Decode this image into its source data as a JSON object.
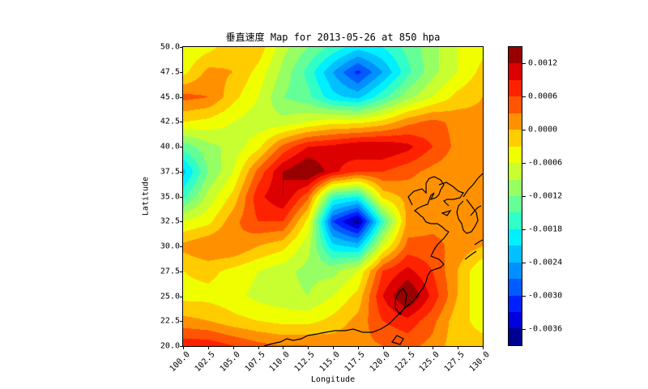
{
  "chart_data": {
    "type": "heatmap",
    "subtype": "filled-contour-map",
    "title": "垂直速度 Map for 2013-05-26 at 850 hpa",
    "xlabel": "Longitude",
    "ylabel": "Latitude",
    "xlim": [
      100.0,
      130.0
    ],
    "ylim": [
      20.0,
      50.0
    ],
    "x_ticks": [
      "100.0",
      "102.5",
      "105.0",
      "107.5",
      "110.0",
      "112.5",
      "115.0",
      "117.5",
      "120.0",
      "122.5",
      "125.0",
      "127.5",
      "130.0"
    ],
    "y_ticks": [
      "50.0",
      "47.5",
      "45.0",
      "42.5",
      "40.0",
      "37.5",
      "35.0",
      "32.5",
      "30.0",
      "27.5",
      "25.0",
      "22.5",
      "20.0"
    ],
    "colorbar": {
      "ticks": [
        "0.0012",
        "0.0006",
        "0.0000",
        "-0.0006",
        "-0.0012",
        "-0.0018",
        "-0.0024",
        "-0.0030",
        "-0.0036"
      ],
      "tick_values": [
        0.0012,
        0.0006,
        0.0,
        -0.0006,
        -0.0012,
        -0.0018,
        -0.0024,
        -0.003,
        -0.0036
      ],
      "vmin": -0.0039,
      "vmax": 0.0015,
      "level_step": 0.0003,
      "colormap": "jet",
      "colors_top_to_bottom": [
        "#990000",
        "#dd0000",
        "#ff2200",
        "#ff5500",
        "#ff9100",
        "#ffcc00",
        "#f0ff00",
        "#c8ff30",
        "#96ff64",
        "#64ff96",
        "#30ffc8",
        "#00f0ff",
        "#00c0ff",
        "#0090ff",
        "#005cff",
        "#0020ff",
        "#0000dd",
        "#000090"
      ]
    },
    "grid_lon": [
      100.0,
      102.5,
      105.0,
      107.5,
      110.0,
      112.5,
      115.0,
      117.5,
      120.0,
      122.5,
      125.0,
      127.5,
      130.0
    ],
    "grid_lat": [
      50.0,
      47.5,
      45.0,
      42.5,
      40.0,
      37.5,
      35.0,
      32.5,
      30.0,
      27.5,
      25.0,
      22.5,
      20.0
    ],
    "values": [
      [
        -0.0006,
        -0.0004,
        -0.0001,
        -0.0001,
        -0.0008,
        -0.0012,
        -0.0016,
        -0.002,
        -0.0018,
        -0.0014,
        -0.001,
        -0.0006,
        -0.0004
      ],
      [
        -0.0004,
        0.0001,
        0.0,
        -0.0004,
        -0.001,
        -0.0016,
        -0.0024,
        -0.0031,
        -0.0024,
        -0.0016,
        -0.001,
        -0.0006,
        -0.0002
      ],
      [
        0.0004,
        0.0003,
        -0.0002,
        -0.0006,
        -0.0012,
        -0.0014,
        -0.002,
        -0.0022,
        -0.0016,
        -0.001,
        -0.0006,
        -0.0002,
        0.0
      ],
      [
        -0.0003,
        -0.0004,
        -0.0006,
        -0.0008,
        -0.0008,
        -0.0006,
        -0.0004,
        -0.0004,
        -0.0002,
        0.0002,
        0.0004,
        0.0002,
        0.0001
      ],
      [
        -0.0014,
        -0.001,
        -0.0008,
        -0.0004,
        0.0004,
        0.0009,
        0.001,
        0.0012,
        0.0012,
        0.001,
        0.0006,
        0.0002,
        0.0001
      ],
      [
        -0.0022,
        -0.0012,
        -0.0006,
        0.0004,
        0.0012,
        0.0016,
        0.001,
        0.0006,
        0.0006,
        0.0004,
        0.0002,
        0.0001,
        0.0
      ],
      [
        -0.0016,
        -0.0008,
        -0.0002,
        0.0008,
        0.0012,
        0.0004,
        -0.0016,
        -0.0018,
        -0.0002,
        0.0001,
        0.0001,
        0.0,
        0.0
      ],
      [
        -0.0006,
        -0.0004,
        0.0002,
        0.0006,
        0.0006,
        -0.0004,
        -0.003,
        -0.0038,
        -0.0016,
        0.0001,
        0.0002,
        0.0002,
        0.0001
      ],
      [
        0.0001,
        0.0003,
        0.0003,
        0.0,
        -0.0002,
        -0.0008,
        -0.002,
        -0.0022,
        -0.0006,
        0.0004,
        0.0004,
        0.0002,
        0.0
      ],
      [
        -0.0003,
        -0.0002,
        -0.0004,
        -0.0006,
        -0.0008,
        -0.001,
        -0.001,
        -0.0006,
        0.0006,
        0.001,
        0.0006,
        0.0,
        -0.0006
      ],
      [
        -0.0004,
        -0.0004,
        -0.0005,
        -0.0007,
        -0.0008,
        -0.0009,
        -0.0006,
        -0.0002,
        0.0009,
        0.0016,
        0.0008,
        0.0,
        -0.0006
      ],
      [
        0.0001,
        0.0,
        -0.0002,
        -0.0003,
        -0.0004,
        -0.0004,
        -0.0002,
        0.0001,
        0.0006,
        0.0008,
        0.0004,
        -0.0002,
        -0.0004
      ],
      [
        0.0008,
        0.0008,
        0.0006,
        0.0004,
        0.0003,
        0.0003,
        0.0002,
        0.0002,
        0.0003,
        0.0004,
        0.0002,
        -0.0002,
        -0.0002
      ]
    ]
  }
}
